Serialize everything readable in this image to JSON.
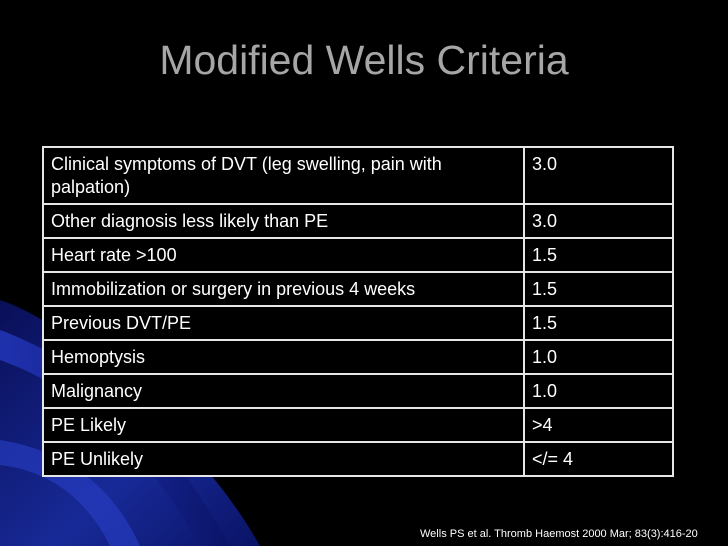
{
  "slide": {
    "title": "Modified Wells Criteria",
    "citation": "Wells PS et al. Thromb Haemost 2000 Mar; 83(3):416-20"
  },
  "rows": [
    {
      "label": "Clinical symptoms of DVT (leg swelling, pain with palpation)",
      "value": "3.0"
    },
    {
      "label": "Other diagnosis less likely than PE",
      "value": "3.0"
    },
    {
      "label": "Heart rate >100",
      "value": "1.5"
    },
    {
      "label": "Immobilization or surgery in previous 4 weeks",
      "value": "1.5"
    },
    {
      "label": "Previous DVT/PE",
      "value": "1.5"
    },
    {
      "label": "Hemoptysis",
      "value": "1.0"
    },
    {
      "label": "Malignancy",
      "value": "1.0"
    },
    {
      "label": "PE Likely",
      "value": ">4"
    },
    {
      "label": "PE Unlikely",
      "value": "</= 4"
    }
  ],
  "colors": {
    "background": "#000000",
    "title": "#a6a6a6",
    "text": "#ffffff",
    "border": "#e6e6e6",
    "accent": "#1a2ea8"
  }
}
